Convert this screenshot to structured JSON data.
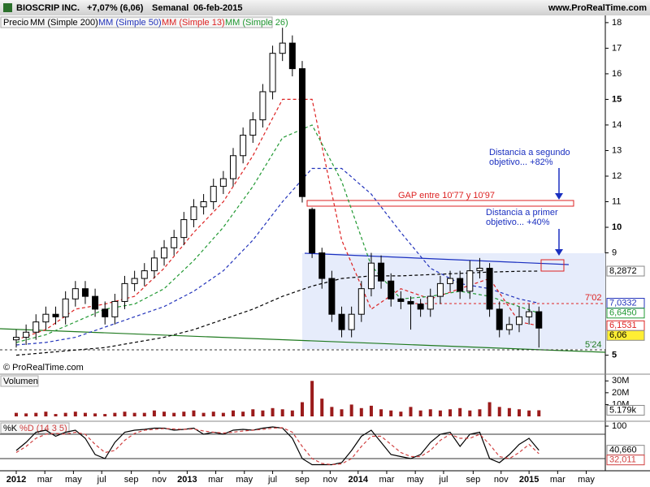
{
  "header": {
    "title": "BIOSCRIP INC.",
    "change": "+7,07% (6,06)",
    "period": "Semanal",
    "date": "06-feb-2015",
    "site": "www.ProRealTime.com",
    "copyright": "© ProRealTime.com"
  },
  "annotations": {
    "gap": "GAP entre 10'77 y 10'97",
    "level_high": "7'02",
    "level_low": "5'24",
    "target_2": [
      "Distancia a segundo",
      "objetivo... +82%"
    ],
    "target_1": [
      "Distancia a primer",
      "objetivo... +40%"
    ]
  },
  "chart_data": [
    {
      "type": "candlestick",
      "xlim": [
        -4.94,
        179.2
      ],
      "ylim": [
        4.29,
        18.25
      ],
      "yticks": [
        18,
        17,
        16,
        15,
        14,
        13,
        12,
        11,
        10,
        9,
        5
      ],
      "grid": false,
      "candles": {
        "name": "Precio",
        "up_color": "#ffffff",
        "down_color": "#000000",
        "last_label": "6,06",
        "label_color": "#ffee33",
        "x": [
          0,
          3,
          6,
          9,
          12,
          15,
          18,
          21,
          24,
          27,
          30,
          33,
          36,
          39,
          42,
          45,
          48,
          51,
          54,
          57,
          60,
          63,
          66,
          69,
          72,
          75,
          78,
          81,
          84,
          87,
          90,
          93,
          96,
          99,
          102,
          105,
          108,
          111,
          114,
          117,
          120,
          123,
          126,
          129,
          132,
          135,
          138,
          141,
          144,
          147,
          150,
          153,
          156,
          159
        ],
        "open": [
          5.6,
          5.7,
          5.9,
          6.3,
          6.6,
          6.5,
          7.2,
          7.6,
          7.3,
          6.8,
          6.5,
          7.1,
          7.8,
          8.0,
          8.3,
          8.8,
          9.2,
          9.6,
          10.3,
          10.8,
          11.0,
          11.6,
          11.9,
          12.8,
          13.6,
          14.2,
          15.3,
          16.8,
          17.2,
          16.2,
          10.7,
          9.0,
          8.0,
          6.6,
          6.0,
          6.6,
          7.6,
          8.6,
          7.9,
          7.2,
          7.1,
          7.0,
          6.8,
          7.3,
          7.8,
          8.0,
          7.5,
          8.3,
          8.4,
          6.8,
          6.0,
          6.2,
          6.5,
          6.7
        ],
        "high": [
          6.0,
          6.2,
          6.6,
          6.9,
          6.9,
          7.5,
          7.9,
          7.9,
          7.6,
          7.1,
          7.4,
          8.1,
          8.3,
          8.6,
          9.1,
          9.5,
          9.9,
          10.6,
          11.1,
          11.3,
          11.9,
          12.2,
          13.1,
          13.9,
          14.5,
          15.6,
          17.1,
          17.8,
          17.5,
          16.5,
          10.77,
          9.2,
          8.3,
          6.9,
          6.9,
          7.9,
          9.0,
          8.9,
          8.2,
          7.5,
          7.3,
          7.2,
          7.6,
          8.1,
          8.3,
          8.3,
          8.7,
          8.8,
          8.6,
          7.1,
          6.5,
          6.9,
          7.0,
          6.9
        ],
        "low": [
          5.3,
          5.4,
          5.6,
          6.0,
          6.2,
          6.2,
          6.9,
          7.0,
          6.5,
          6.2,
          6.2,
          6.8,
          7.5,
          7.7,
          8.0,
          8.5,
          8.9,
          9.3,
          10.0,
          10.5,
          10.7,
          11.3,
          11.6,
          12.5,
          13.3,
          13.9,
          15.0,
          16.5,
          15.9,
          10.97,
          8.8,
          7.6,
          6.3,
          5.7,
          5.7,
          6.3,
          7.3,
          7.6,
          6.9,
          6.8,
          6.0,
          6.5,
          6.5,
          7.0,
          7.5,
          7.2,
          7.2,
          8.0,
          6.5,
          5.7,
          5.8,
          5.9,
          6.2,
          5.3
        ],
        "close": [
          5.7,
          5.9,
          6.3,
          6.6,
          6.5,
          7.2,
          7.6,
          7.3,
          6.8,
          6.5,
          7.1,
          7.8,
          8.0,
          8.3,
          8.8,
          9.2,
          9.6,
          10.3,
          10.8,
          11.0,
          11.6,
          11.9,
          12.8,
          13.6,
          14.2,
          15.3,
          16.8,
          17.2,
          16.2,
          11.2,
          9.0,
          8.0,
          6.6,
          6.0,
          6.6,
          7.6,
          8.6,
          7.9,
          7.2,
          7.1,
          7.0,
          6.8,
          7.3,
          7.8,
          8.0,
          7.5,
          8.3,
          8.4,
          6.8,
          6.0,
          6.2,
          6.5,
          6.7,
          6.06
        ]
      },
      "series": [
        {
          "name": "MM (Simple 200)",
          "color": "#000000",
          "last_label": "8,2872",
          "x": [
            0,
            9,
            18,
            27,
            36,
            45,
            54,
            63,
            72,
            81,
            90,
            99,
            108,
            117,
            126,
            135,
            144,
            153,
            159
          ],
          "values": [
            5.0,
            5.1,
            5.2,
            5.3,
            5.5,
            5.7,
            6.0,
            6.4,
            6.8,
            7.3,
            7.7,
            8.0,
            8.1,
            8.1,
            8.15,
            8.2,
            8.25,
            8.28,
            8.2872
          ]
        },
        {
          "name": "MM (Simple 50)",
          "color": "#2233bb",
          "last_label": "7,0332",
          "x": [
            0,
            9,
            18,
            27,
            36,
            45,
            54,
            63,
            72,
            81,
            90,
            99,
            108,
            117,
            126,
            135,
            144,
            153,
            159
          ],
          "values": [
            5.4,
            5.5,
            5.7,
            6.1,
            6.5,
            6.9,
            7.5,
            8.3,
            9.5,
            11.0,
            12.3,
            12.3,
            11.3,
            9.8,
            8.4,
            7.8,
            7.6,
            7.2,
            7.0332
          ]
        },
        {
          "name": "MM (Simple 13)",
          "color": "#dd2222",
          "last_label": "6,1531",
          "x": [
            0,
            9,
            18,
            27,
            36,
            45,
            54,
            63,
            72,
            81,
            90,
            99,
            108,
            117,
            126,
            135,
            144,
            153,
            159
          ],
          "values": [
            5.6,
            6.0,
            6.8,
            7.0,
            7.3,
            8.4,
            9.8,
            11.0,
            12.8,
            15.0,
            15.0,
            9.5,
            6.8,
            7.6,
            7.2,
            7.6,
            8.0,
            6.3,
            6.1531
          ]
        },
        {
          "name": "MM (Simple 26)",
          "color": "#229933",
          "last_label": "6,6450",
          "x": [
            0,
            9,
            18,
            27,
            36,
            45,
            54,
            63,
            72,
            81,
            90,
            99,
            108,
            117,
            126,
            135,
            144,
            153,
            159
          ],
          "values": [
            5.5,
            5.8,
            6.3,
            6.8,
            7.0,
            7.6,
            8.7,
            10.0,
            11.6,
            13.5,
            14.0,
            11.8,
            8.5,
            7.2,
            7.3,
            7.5,
            7.3,
            6.9,
            6.645
          ]
        }
      ]
    },
    {
      "type": "bar",
      "xlim": [
        -4.94,
        179.2
      ],
      "ylim": [
        0,
        35
      ],
      "yticks": [
        {
          "value": 30,
          "label": "30M"
        },
        {
          "value": 20,
          "label": "20M"
        },
        {
          "value": 10,
          "label": "10M"
        }
      ],
      "x": [
        0,
        3,
        6,
        9,
        12,
        15,
        18,
        21,
        24,
        27,
        30,
        33,
        36,
        39,
        42,
        45,
        48,
        51,
        54,
        57,
        60,
        63,
        66,
        69,
        72,
        75,
        78,
        81,
        84,
        87,
        90,
        93,
        96,
        99,
        102,
        105,
        108,
        111,
        114,
        117,
        120,
        123,
        126,
        129,
        132,
        135,
        138,
        141,
        144,
        147,
        150,
        153,
        156,
        159
      ],
      "series": [
        {
          "name": "Volumen",
          "color": "#9b1b1b",
          "last_label": "5.179k",
          "values": [
            3,
            2.5,
            3,
            4,
            2,
            3,
            4,
            3,
            2.5,
            2,
            3,
            4,
            3,
            3,
            5,
            4,
            3,
            4,
            5,
            3,
            4,
            3,
            5,
            4,
            6,
            5,
            7,
            6,
            5,
            12,
            30,
            15,
            8,
            6,
            10,
            7,
            9,
            6,
            5,
            4,
            8,
            5,
            6,
            5,
            6,
            7,
            5,
            6,
            12,
            8,
            7,
            6,
            5,
            5.179
          ]
        }
      ]
    },
    {
      "type": "line",
      "xlim": [
        -4.94,
        179.2
      ],
      "ylim": [
        -10,
        110
      ],
      "yticks": [
        100
      ],
      "xticks": [
        {
          "value": 0,
          "label": "2012"
        },
        {
          "value": 8.7,
          "label": "mar"
        },
        {
          "value": 17.4,
          "label": "may"
        },
        {
          "value": 26,
          "label": "jul"
        },
        {
          "value": 35,
          "label": "sep"
        },
        {
          "value": 43.5,
          "label": "nov"
        },
        {
          "value": 52,
          "label": "2013"
        },
        {
          "value": 60.7,
          "label": "mar"
        },
        {
          "value": 69.4,
          "label": "may"
        },
        {
          "value": 78,
          "label": "jul"
        },
        {
          "value": 87,
          "label": "sep"
        },
        {
          "value": 95.5,
          "label": "nov"
        },
        {
          "value": 104,
          "label": "2014"
        },
        {
          "value": 112.7,
          "label": "mar"
        },
        {
          "value": 121.4,
          "label": "may"
        },
        {
          "value": 130,
          "label": "jul"
        },
        {
          "value": 139,
          "label": "sep"
        },
        {
          "value": 147.5,
          "label": "nov"
        },
        {
          "value": 156,
          "label": "2015"
        },
        {
          "value": 164.7,
          "label": "mar"
        },
        {
          "value": 173.4,
          "label": "may"
        }
      ],
      "x": [
        0,
        3,
        6,
        9,
        12,
        15,
        18,
        21,
        24,
        27,
        30,
        33,
        36,
        39,
        42,
        45,
        48,
        51,
        54,
        57,
        60,
        63,
        66,
        69,
        72,
        75,
        78,
        81,
        84,
        87,
        90,
        93,
        96,
        99,
        102,
        105,
        108,
        111,
        114,
        117,
        120,
        123,
        126,
        129,
        132,
        135,
        138,
        141,
        144,
        147,
        150,
        153,
        156,
        159
      ],
      "series": [
        {
          "name": "%K",
          "color": "#000000",
          "last_label": "40,660",
          "values": [
            40,
            60,
            85,
            90,
            75,
            85,
            90,
            70,
            30,
            20,
            60,
            85,
            90,
            92,
            95,
            95,
            90,
            92,
            95,
            80,
            85,
            80,
            90,
            92,
            90,
            95,
            98,
            95,
            70,
            20,
            5,
            5,
            5,
            10,
            40,
            75,
            90,
            60,
            30,
            25,
            20,
            30,
            60,
            80,
            85,
            50,
            80,
            85,
            20,
            10,
            30,
            55,
            70,
            40.66
          ]
        },
        {
          "name": "%D (14 3 5)",
          "color": "#d04040",
          "last_label": "32,011",
          "values": [
            35,
            50,
            70,
            80,
            82,
            80,
            85,
            80,
            55,
            35,
            40,
            65,
            82,
            90,
            92,
            94,
            93,
            92,
            93,
            88,
            85,
            83,
            85,
            88,
            90,
            92,
            95,
            96,
            85,
            50,
            20,
            8,
            5,
            7,
            20,
            50,
            75,
            75,
            55,
            35,
            25,
            25,
            40,
            65,
            80,
            70,
            70,
            80,
            55,
            25,
            20,
            35,
            55,
            32.011
          ]
        }
      ]
    }
  ]
}
